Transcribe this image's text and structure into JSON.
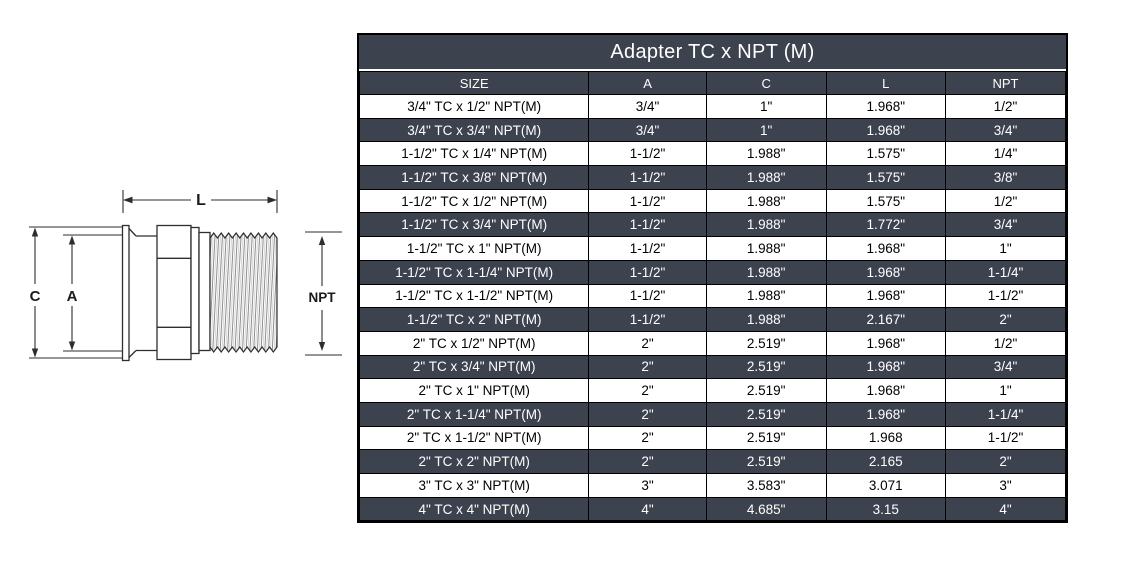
{
  "diagram": {
    "dim_labels": {
      "L": "L",
      "C": "C",
      "A": "A",
      "NPT": "NPT"
    }
  },
  "table": {
    "title": "Adapter TC x NPT (M)",
    "columns": [
      "SIZE",
      "A",
      "C",
      "L",
      "NPT"
    ],
    "rows": [
      [
        "3/4\" TC x 1/2\" NPT(M)",
        "3/4\"",
        "1\"",
        "1.968\"",
        "1/2\""
      ],
      [
        "3/4\" TC x 3/4\" NPT(M)",
        "3/4\"",
        "1\"",
        "1.968\"",
        "3/4\""
      ],
      [
        "1-1/2\" TC x 1/4\" NPT(M)",
        "1-1/2\"",
        "1.988\"",
        "1.575\"",
        "1/4\""
      ],
      [
        "1-1/2\" TC x 3/8\" NPT(M)",
        "1-1/2\"",
        "1.988\"",
        "1.575\"",
        "3/8\""
      ],
      [
        "1-1/2\" TC x 1/2\" NPT(M)",
        "1-1/2\"",
        "1.988\"",
        "1.575\"",
        "1/2\""
      ],
      [
        "1-1/2\" TC x 3/4\" NPT(M)",
        "1-1/2\"",
        "1.988\"",
        "1.772\"",
        "3/4\""
      ],
      [
        "1-1/2\" TC x 1\" NPT(M)",
        "1-1/2\"",
        "1.988\"",
        "1.968\"",
        "1\""
      ],
      [
        "1-1/2\" TC x 1-1/4\" NPT(M)",
        "1-1/2\"",
        "1.988\"",
        "1.968\"",
        "1-1/4\""
      ],
      [
        "1-1/2\" TC x 1-1/2\" NPT(M)",
        "1-1/2\"",
        "1.988\"",
        "1.968\"",
        "1-1/2\""
      ],
      [
        "1-1/2\" TC x 2\" NPT(M)",
        "1-1/2\"",
        "1.988\"",
        "2.167\"",
        "2\""
      ],
      [
        "2\" TC x 1/2\" NPT(M)",
        "2\"",
        "2.519\"",
        "1.968\"",
        "1/2\""
      ],
      [
        "2\" TC x 3/4\" NPT(M)",
        "2\"",
        "2.519\"",
        "1.968\"",
        "3/4\""
      ],
      [
        "2\" TC x 1\" NPT(M)",
        "2\"",
        "2.519\"",
        "1.968\"",
        "1\""
      ],
      [
        "2\" TC x 1-1/4\" NPT(M)",
        "2\"",
        "2.519\"",
        "1.968\"",
        "1-1/4\""
      ],
      [
        "2\" TC x 1-1/2\" NPT(M)",
        "2\"",
        "2.519\"",
        "1.968",
        "1-1/2\""
      ],
      [
        "2\" TC x 2\" NPT(M)",
        "2\"",
        "2.519\"",
        "2.165",
        "2\""
      ],
      [
        "3\" TC x 3\" NPT(M)",
        "3\"",
        "3.583\"",
        "3.071",
        "3\""
      ],
      [
        "4\" TC x 4\" NPT(M)",
        "4\"",
        "4.685\"",
        "3.15",
        "4\""
      ]
    ],
    "colors": {
      "row_dark_bg": "#3d424f",
      "row_light_bg": "#ffffff",
      "header_bg": "#3d424f",
      "header_text": "#ffffff",
      "border": "#000000"
    }
  }
}
